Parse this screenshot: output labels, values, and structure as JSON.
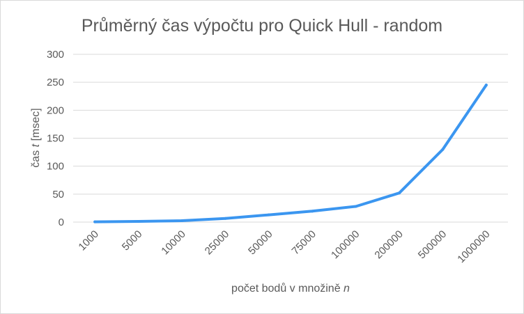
{
  "chart_data": {
    "type": "line",
    "title": "Průměrný čas výpočtu pro Quick Hull - random",
    "xlabel": "počet bodů v množině",
    "xlabel_var": "n",
    "ylabel": "čas",
    "ylabel_var": "t",
    "ylabel_unit": "[msec]",
    "categories": [
      "1000",
      "5000",
      "10000",
      "25000",
      "50000",
      "75000",
      "100000",
      "200000",
      "500000",
      "1000000"
    ],
    "series": [
      {
        "values": [
          0.5,
          1.2,
          2.5,
          6.5,
          13,
          19.5,
          28,
          52,
          130,
          245
        ],
        "color": "#3b96f0"
      }
    ],
    "ylim": [
      0,
      300
    ],
    "yticks": [
      0,
      50,
      100,
      150,
      200,
      250,
      300
    ],
    "grid": true,
    "legend": "none"
  }
}
